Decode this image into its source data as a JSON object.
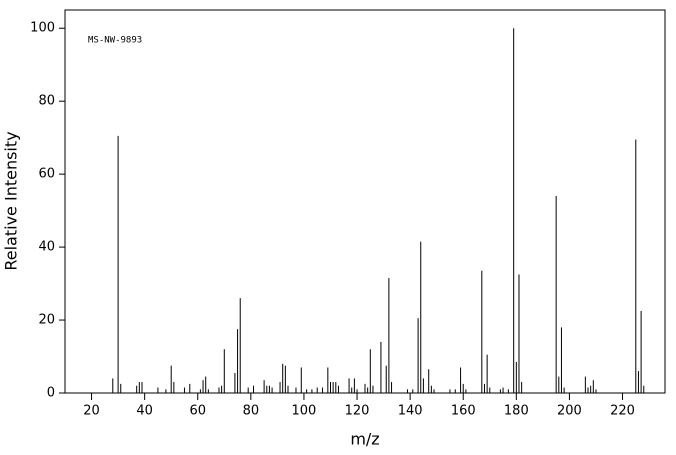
{
  "chart_data": {
    "type": "stem",
    "annotation": "MS-NW-9893",
    "x_label": "m/z",
    "y_label": "Relative Intensity",
    "color": "#000000",
    "x": [
      28,
      30,
      31,
      37,
      38,
      39,
      45,
      48,
      50,
      51,
      55,
      57,
      61,
      62,
      63,
      64,
      68,
      69,
      70,
      74,
      75,
      76,
      79,
      81,
      85,
      86,
      87,
      88,
      91,
      92,
      93,
      94,
      97,
      99,
      101,
      103,
      105,
      107,
      109,
      110,
      111,
      112,
      113,
      117,
      118,
      119,
      120,
      123,
      124,
      125,
      126,
      129,
      131,
      132,
      133,
      139,
      141,
      143,
      144,
      145,
      147,
      148,
      149,
      155,
      157,
      159,
      160,
      161,
      167,
      168,
      169,
      170,
      174,
      175,
      177,
      179,
      180,
      181,
      182,
      195,
      196,
      197,
      198,
      206,
      207,
      208,
      209,
      210,
      225,
      226,
      227,
      228
    ],
    "values": [
      4,
      70.5,
      2.5,
      2,
      3,
      3,
      1.5,
      1,
      7.5,
      3,
      1.5,
      2.5,
      1,
      3.5,
      4.5,
      1,
      1.5,
      2,
      12,
      5.5,
      17.5,
      26,
      1.5,
      2,
      3.5,
      2,
      2,
      1.5,
      3,
      8,
      7.5,
      2,
      1.5,
      7,
      1,
      1,
      1.5,
      1.5,
      7,
      3,
      3,
      3,
      2,
      4,
      1.5,
      4,
      1,
      2.5,
      1.5,
      12,
      2,
      14,
      7.5,
      31.5,
      3,
      1,
      1,
      20.5,
      41.5,
      4,
      6.5,
      2,
      1,
      1,
      1,
      7,
      2.5,
      1,
      33.5,
      2.5,
      10.5,
      1.5,
      1,
      1.5,
      1,
      100,
      8.5,
      32.5,
      3,
      54,
      4.5,
      18,
      1.5,
      4.5,
      1.5,
      2,
      3.5,
      1,
      69.5,
      6,
      22.5,
      2
    ],
    "xlim": [
      10,
      236
    ],
    "ylim": [
      0,
      105
    ],
    "xticks": [
      20,
      40,
      60,
      80,
      100,
      120,
      140,
      160,
      180,
      200,
      220
    ],
    "yticks": [
      0,
      20,
      40,
      60,
      80,
      100
    ]
  }
}
